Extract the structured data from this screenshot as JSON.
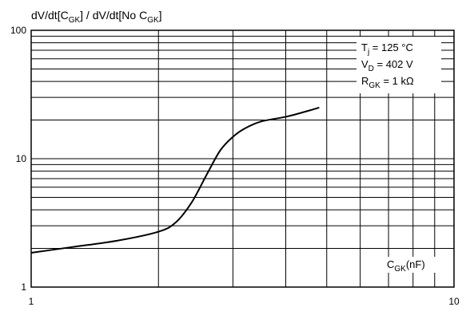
{
  "chart_data": {
    "type": "line",
    "scale": {
      "x": "log",
      "y": "log"
    },
    "xlim": [
      1,
      10
    ],
    "ylim": [
      1,
      100
    ],
    "grid": true,
    "y_title": {
      "main": "dV/dt[C",
      "sub": "GK",
      "mid": "] / dV/dt[No C",
      "sub2": "GK",
      "end": "]"
    },
    "x_title": {
      "main": "C",
      "sub": "GK",
      "end": "(nF)"
    },
    "x_ticks": [
      {
        "value": 1,
        "label": "1"
      },
      {
        "value": 10,
        "label": "10"
      }
    ],
    "y_ticks": [
      {
        "value": 1,
        "label": "1"
      },
      {
        "value": 10,
        "label": "10"
      },
      {
        "value": 100,
        "label": "100"
      }
    ],
    "annotations": [
      {
        "main": "T",
        "sub": "j",
        "end": " = 125 °C"
      },
      {
        "main": "V",
        "sub": "D",
        "end": " = 402 V"
      },
      {
        "main": "R",
        "sub": "GK",
        "end": " = 1 kΩ"
      }
    ],
    "series": [
      {
        "x": [
          1.0,
          1.25,
          1.6,
          2.0,
          2.2,
          2.4,
          2.6,
          2.8,
          3.0,
          3.2,
          3.5,
          4.0,
          4.5,
          4.8
        ],
        "y": [
          1.85,
          2.05,
          2.3,
          2.7,
          3.2,
          4.6,
          7.5,
          11.6,
          14.8,
          17.2,
          19.5,
          21.2,
          23.5,
          25.0
        ]
      }
    ]
  }
}
